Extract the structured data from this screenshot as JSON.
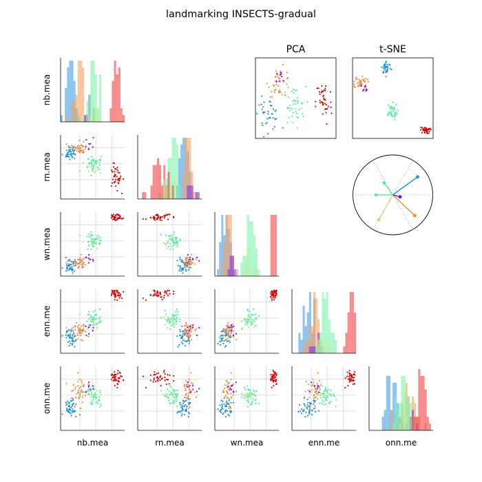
{
  "title": "landmarking INSECTS-gradual",
  "chart_data": {
    "type": "scatter",
    "variables": [
      "nb.mea",
      "rn.mea",
      "wn.mea",
      "enn.me",
      "onn.me"
    ],
    "embeddings": [
      "PCA",
      "t-SNE"
    ],
    "class_colors": [
      "#1f8fd6",
      "#f4893b",
      "#8000ff",
      "#50f0a0",
      "#e00000",
      "#b8e27a"
    ],
    "diag_hist_colors": [
      "#3f9ee8",
      "#f6a05e",
      "#8a2be2",
      "#7cf2a8",
      "#f24040",
      "#b8f0a0"
    ],
    "grid": true,
    "legend": "none",
    "axis_range": [
      0,
      1
    ],
    "clusters": [
      {
        "class": 0,
        "n": 45,
        "c": [
          0.15,
          0.72,
          0.18,
          0.25,
          0.35
        ],
        "s": [
          0.06,
          0.05,
          0.05,
          0.08,
          0.08
        ]
      },
      {
        "class": 1,
        "n": 40,
        "c": [
          0.3,
          0.8,
          0.2,
          0.35,
          0.62
        ],
        "s": [
          0.06,
          0.05,
          0.05,
          0.07,
          0.12
        ]
      },
      {
        "class": 2,
        "n": 8,
        "c": [
          0.45,
          0.82,
          0.25,
          0.4,
          0.65
        ],
        "s": [
          0.06,
          0.05,
          0.05,
          0.06,
          0.06
        ]
      },
      {
        "class": 3,
        "n": 45,
        "c": [
          0.5,
          0.55,
          0.55,
          0.55,
          0.55
        ],
        "s": [
          0.06,
          0.07,
          0.06,
          0.06,
          0.07
        ]
      },
      {
        "class": 4,
        "n": 40,
        "c": [
          0.85,
          0.35,
          0.92,
          0.92,
          0.82
        ],
        "s": [
          0.06,
          0.1,
          0.03,
          0.04,
          0.06
        ]
      },
      {
        "class": 5,
        "n": 10,
        "c": [
          0.55,
          0.5,
          0.5,
          0.5,
          0.55
        ],
        "s": [
          0.07,
          0.07,
          0.06,
          0.06,
          0.06
        ]
      }
    ],
    "pca_clusters": [
      {
        "class": 1,
        "cx": 0.3,
        "cy": 0.7,
        "sx": 0.07,
        "sy": 0.09
      },
      {
        "class": 0,
        "cx": 0.15,
        "cy": 0.3,
        "sx": 0.08,
        "sy": 0.1
      },
      {
        "class": 3,
        "cx": 0.48,
        "cy": 0.4,
        "sx": 0.07,
        "sy": 0.12
      },
      {
        "class": 4,
        "cx": 0.85,
        "cy": 0.45,
        "sx": 0.05,
        "sy": 0.15
      },
      {
        "class": 2,
        "cx": 0.33,
        "cy": 0.75,
        "sx": 0.04,
        "sy": 0.05
      }
    ],
    "tsne_clusters": [
      {
        "class": 0,
        "cx": 0.42,
        "cy": 0.88,
        "sx": 0.03,
        "sy": 0.04
      },
      {
        "class": 1,
        "cx": 0.1,
        "cy": 0.7,
        "sx": 0.04,
        "sy": 0.04
      },
      {
        "class": 2,
        "cx": 0.16,
        "cy": 0.63,
        "sx": 0.02,
        "sy": 0.02
      },
      {
        "class": 3,
        "cx": 0.48,
        "cy": 0.33,
        "sx": 0.04,
        "sy": 0.05
      },
      {
        "class": 4,
        "cx": 0.9,
        "cy": 0.1,
        "sx": 0.03,
        "sy": 0.02
      }
    ],
    "loadings": [
      {
        "class": 0,
        "x": 0.62,
        "y": 0.45
      },
      {
        "class": 1,
        "x": 0.55,
        "y": -0.52
      },
      {
        "class": 2,
        "x": 0.18,
        "y": -0.05
      },
      {
        "class": 3,
        "x": -0.42,
        "y": 0.0
      },
      {
        "class": 5,
        "x": -0.35,
        "y": -0.62
      },
      {
        "class": 3,
        "x": -0.22,
        "y": 0.3
      }
    ]
  }
}
